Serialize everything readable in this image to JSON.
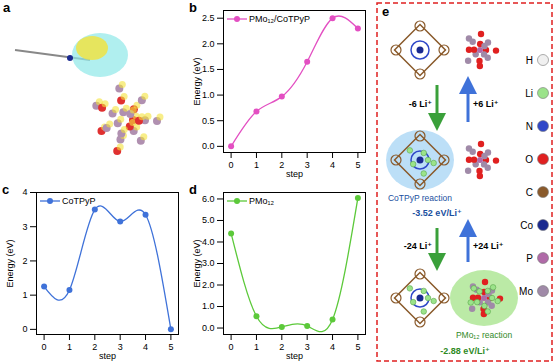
{
  "panel_labels": [
    "a",
    "b",
    "c",
    "d",
    "e"
  ],
  "chart_data": [
    {
      "type": "line",
      "x_label": "step",
      "y_label": "Energy (eV)",
      "x": [
        0,
        1,
        2,
        3,
        4,
        5
      ],
      "xlim": [
        -0.3,
        5.3
      ],
      "xticks": [
        0,
        1,
        2,
        3,
        4,
        5
      ],
      "ylim": [
        -0.12,
        2.65
      ],
      "yticks": [
        {
          "value": 0,
          "label": "0.0"
        },
        0.5,
        {
          "value": 1,
          "label": "1.0"
        },
        1.5,
        {
          "value": 2,
          "label": "2.0"
        },
        2.5
      ],
      "legend": "top-left",
      "series": [
        {
          "name": "PMo₁₂/CoTPyP",
          "color": "#e34fc2",
          "marker": "circle",
          "line_style": "solid",
          "values": [
            0.0,
            0.68,
            0.97,
            1.65,
            2.5,
            2.3
          ]
        }
      ]
    },
    {
      "type": "line",
      "x_label": "step",
      "y_label": "Energy (eV)",
      "x": [
        0,
        1,
        2,
        3,
        4,
        5
      ],
      "xlim": [
        -0.3,
        5.3
      ],
      "xticks": [
        0,
        1,
        2,
        3,
        4,
        5
      ],
      "ylim": [
        -0.15,
        4.0
      ],
      "yticks": [
        0,
        1,
        2,
        3,
        4
      ],
      "legend": "top-left",
      "series": [
        {
          "name": "CoTPyP",
          "color": "#3f72d9",
          "marker": "circle",
          "line_style": "solid",
          "values": [
            1.25,
            1.15,
            3.5,
            3.15,
            3.35,
            0.0
          ]
        }
      ]
    },
    {
      "type": "line",
      "x_label": "step",
      "y_label": "Energy (eV)",
      "x": [
        0,
        1,
        2,
        3,
        4,
        5
      ],
      "xlim": [
        -0.3,
        5.3
      ],
      "xticks": [
        0,
        1,
        2,
        3,
        4,
        5
      ],
      "ylim": [
        -0.3,
        6.3
      ],
      "yticks": [
        {
          "value": 0,
          "label": "0.0"
        },
        {
          "value": 1,
          "label": "1.0"
        },
        {
          "value": 2,
          "label": "2.0"
        },
        {
          "value": 3,
          "label": "3.0"
        },
        {
          "value": 4,
          "label": "4.0"
        },
        {
          "value": 5,
          "label": "5.0"
        },
        {
          "value": 6,
          "label": "6.0"
        }
      ],
      "legend": "top-left",
      "series": [
        {
          "name": "PMo₁₂",
          "color": "#5cc93a",
          "marker": "circle",
          "line_style": "solid",
          "values": [
            4.4,
            0.55,
            0.05,
            0.1,
            0.4,
            6.05
          ]
        }
      ]
    }
  ],
  "diagram": {
    "steps": [
      {
        "down": "-6 Li⁺",
        "up": "+6 Li⁺"
      },
      {
        "down": "-24 Li⁺",
        "up": "+24 Li⁺"
      }
    ],
    "reactions": [
      {
        "name": "CoTPyP reaction",
        "energy": "-3.52 eV/Li⁺",
        "color": "#8fcaf2"
      },
      {
        "name": "PMo₁₂ reaction",
        "energy": "-2.88 eV/Li⁺",
        "color": "#8edc6a"
      }
    ],
    "elements": [
      {
        "label": "H",
        "color": "#f0f0f0"
      },
      {
        "label": "Li",
        "color": "#9be38a"
      },
      {
        "label": "N",
        "color": "#3048c8"
      },
      {
        "label": "O",
        "color": "#e02020"
      },
      {
        "label": "C",
        "color": "#8a5a2b"
      },
      {
        "label": "Co",
        "color": "#1a2a90"
      },
      {
        "label": "P",
        "color": "#b06aa8"
      },
      {
        "label": "Mo",
        "color": "#a08aa8"
      }
    ]
  }
}
